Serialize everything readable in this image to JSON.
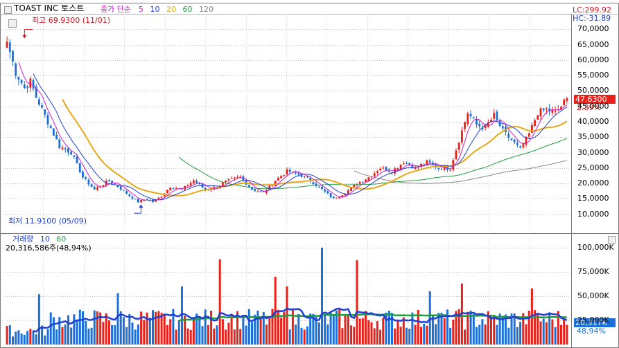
{
  "header": {
    "close_glyph": "▣",
    "stock_name": "TOAST INC  토스트",
    "indicator_name": "종가 단순",
    "ma_periods": [
      "5",
      "10",
      "20",
      "60",
      "120"
    ],
    "ma_colors": [
      "#c81ecb",
      "#1f3fd4",
      "#e6a817",
      "#1e9e3c",
      "#888888"
    ]
  },
  "price_pane": {
    "lc_text": "LC:299.92",
    "hc_text": "HC:-31.89",
    "high_marker": "최고 69.9300 (11/01)",
    "low_marker": "최저 11.9100 (05/09)",
    "price_badge": "47.6300",
    "change_text": "2.39%",
    "axis_ticks": [
      "70,0000",
      "65,0000",
      "60,0000",
      "55,0000",
      "50,0000",
      "45,0000",
      "40,0000",
      "35,0000",
      "30,0000",
      "25,0000",
      "20,0000",
      "15,0000",
      "10,0000"
    ],
    "up_color": "#e8201a",
    "down_color": "#1c6fd6"
  },
  "volume_pane": {
    "title": "거래량",
    "ma_periods": [
      "10",
      "60"
    ],
    "ma_colors": [
      "#1f3fd4",
      "#1e9e3c"
    ],
    "summary": "20,316,586주(48,94%)",
    "axis_ticks": [
      "100,000K",
      "75,000K",
      "50,000K",
      "25,000K"
    ],
    "volume_badge": "20,317K",
    "percent_text": "48,94%"
  },
  "chart_data": [
    {
      "type": "candlestick",
      "title": "TOAST INC 토스트",
      "ylim": [
        5,
        75
      ],
      "y_ticks": [
        70,
        65,
        60,
        55,
        50,
        45,
        40,
        35,
        30,
        25,
        20,
        15,
        10
      ],
      "keyframes": [
        {
          "i": 0,
          "close": 66
        },
        {
          "i": 3,
          "close": 56
        },
        {
          "i": 6,
          "close": 51
        },
        {
          "i": 8,
          "close": 53
        },
        {
          "i": 10,
          "close": 48
        },
        {
          "i": 14,
          "close": 40
        },
        {
          "i": 18,
          "close": 32
        },
        {
          "i": 22,
          "close": 30
        },
        {
          "i": 26,
          "close": 22
        },
        {
          "i": 30,
          "close": 18
        },
        {
          "i": 35,
          "close": 21
        },
        {
          "i": 38,
          "close": 19
        },
        {
          "i": 42,
          "close": 16
        },
        {
          "i": 45,
          "close": 14
        },
        {
          "i": 48,
          "close": 15
        },
        {
          "i": 50,
          "close": 14
        },
        {
          "i": 53,
          "close": 16
        },
        {
          "i": 56,
          "close": 19
        },
        {
          "i": 60,
          "close": 18
        },
        {
          "i": 64,
          "close": 21
        },
        {
          "i": 68,
          "close": 18
        },
        {
          "i": 72,
          "close": 19
        },
        {
          "i": 76,
          "close": 21
        },
        {
          "i": 80,
          "close": 22
        },
        {
          "i": 84,
          "close": 18
        },
        {
          "i": 88,
          "close": 17
        },
        {
          "i": 92,
          "close": 21
        },
        {
          "i": 96,
          "close": 24
        },
        {
          "i": 100,
          "close": 23
        },
        {
          "i": 104,
          "close": 21
        },
        {
          "i": 108,
          "close": 18
        },
        {
          "i": 112,
          "close": 15
        },
        {
          "i": 116,
          "close": 17
        },
        {
          "i": 120,
          "close": 20
        },
        {
          "i": 124,
          "close": 22
        },
        {
          "i": 128,
          "close": 25
        },
        {
          "i": 132,
          "close": 24
        },
        {
          "i": 136,
          "close": 27
        },
        {
          "i": 140,
          "close": 25
        },
        {
          "i": 144,
          "close": 27
        },
        {
          "i": 148,
          "close": 25
        },
        {
          "i": 152,
          "close": 25
        },
        {
          "i": 155,
          "close": 34
        },
        {
          "i": 158,
          "close": 43
        },
        {
          "i": 161,
          "close": 39
        },
        {
          "i": 164,
          "close": 38
        },
        {
          "i": 167,
          "close": 42
        },
        {
          "i": 170,
          "close": 37
        },
        {
          "i": 173,
          "close": 34
        },
        {
          "i": 176,
          "close": 31
        },
        {
          "i": 179,
          "close": 36
        },
        {
          "i": 182,
          "close": 43
        },
        {
          "i": 185,
          "close": 44
        },
        {
          "i": 188,
          "close": 43
        },
        {
          "i": 190,
          "close": 45
        },
        {
          "i": 192,
          "close": 47.63
        }
      ],
      "high_label_value": 69.93,
      "low_label_value": 11.91,
      "last_close": 47.63,
      "change_percent": 2.39
    },
    {
      "type": "bar",
      "title": "거래량",
      "ylabel": "K",
      "ylim": [
        0,
        110000
      ],
      "y_ticks": [
        100000,
        75000,
        50000,
        25000
      ],
      "last_value": 20317,
      "spikes": [
        {
          "i": 73,
          "value": 88000
        },
        {
          "i": 108,
          "value": 100000
        },
        {
          "i": 120,
          "value": 87000
        },
        {
          "i": 92,
          "value": 70000
        },
        {
          "i": 96,
          "value": 60000
        },
        {
          "i": 156,
          "value": 63000
        },
        {
          "i": 60,
          "value": 60000
        },
        {
          "i": 38,
          "value": 53000
        },
        {
          "i": 180,
          "value": 58000
        },
        {
          "i": 11,
          "value": 52000
        },
        {
          "i": 145,
          "value": 55000
        }
      ]
    }
  ]
}
